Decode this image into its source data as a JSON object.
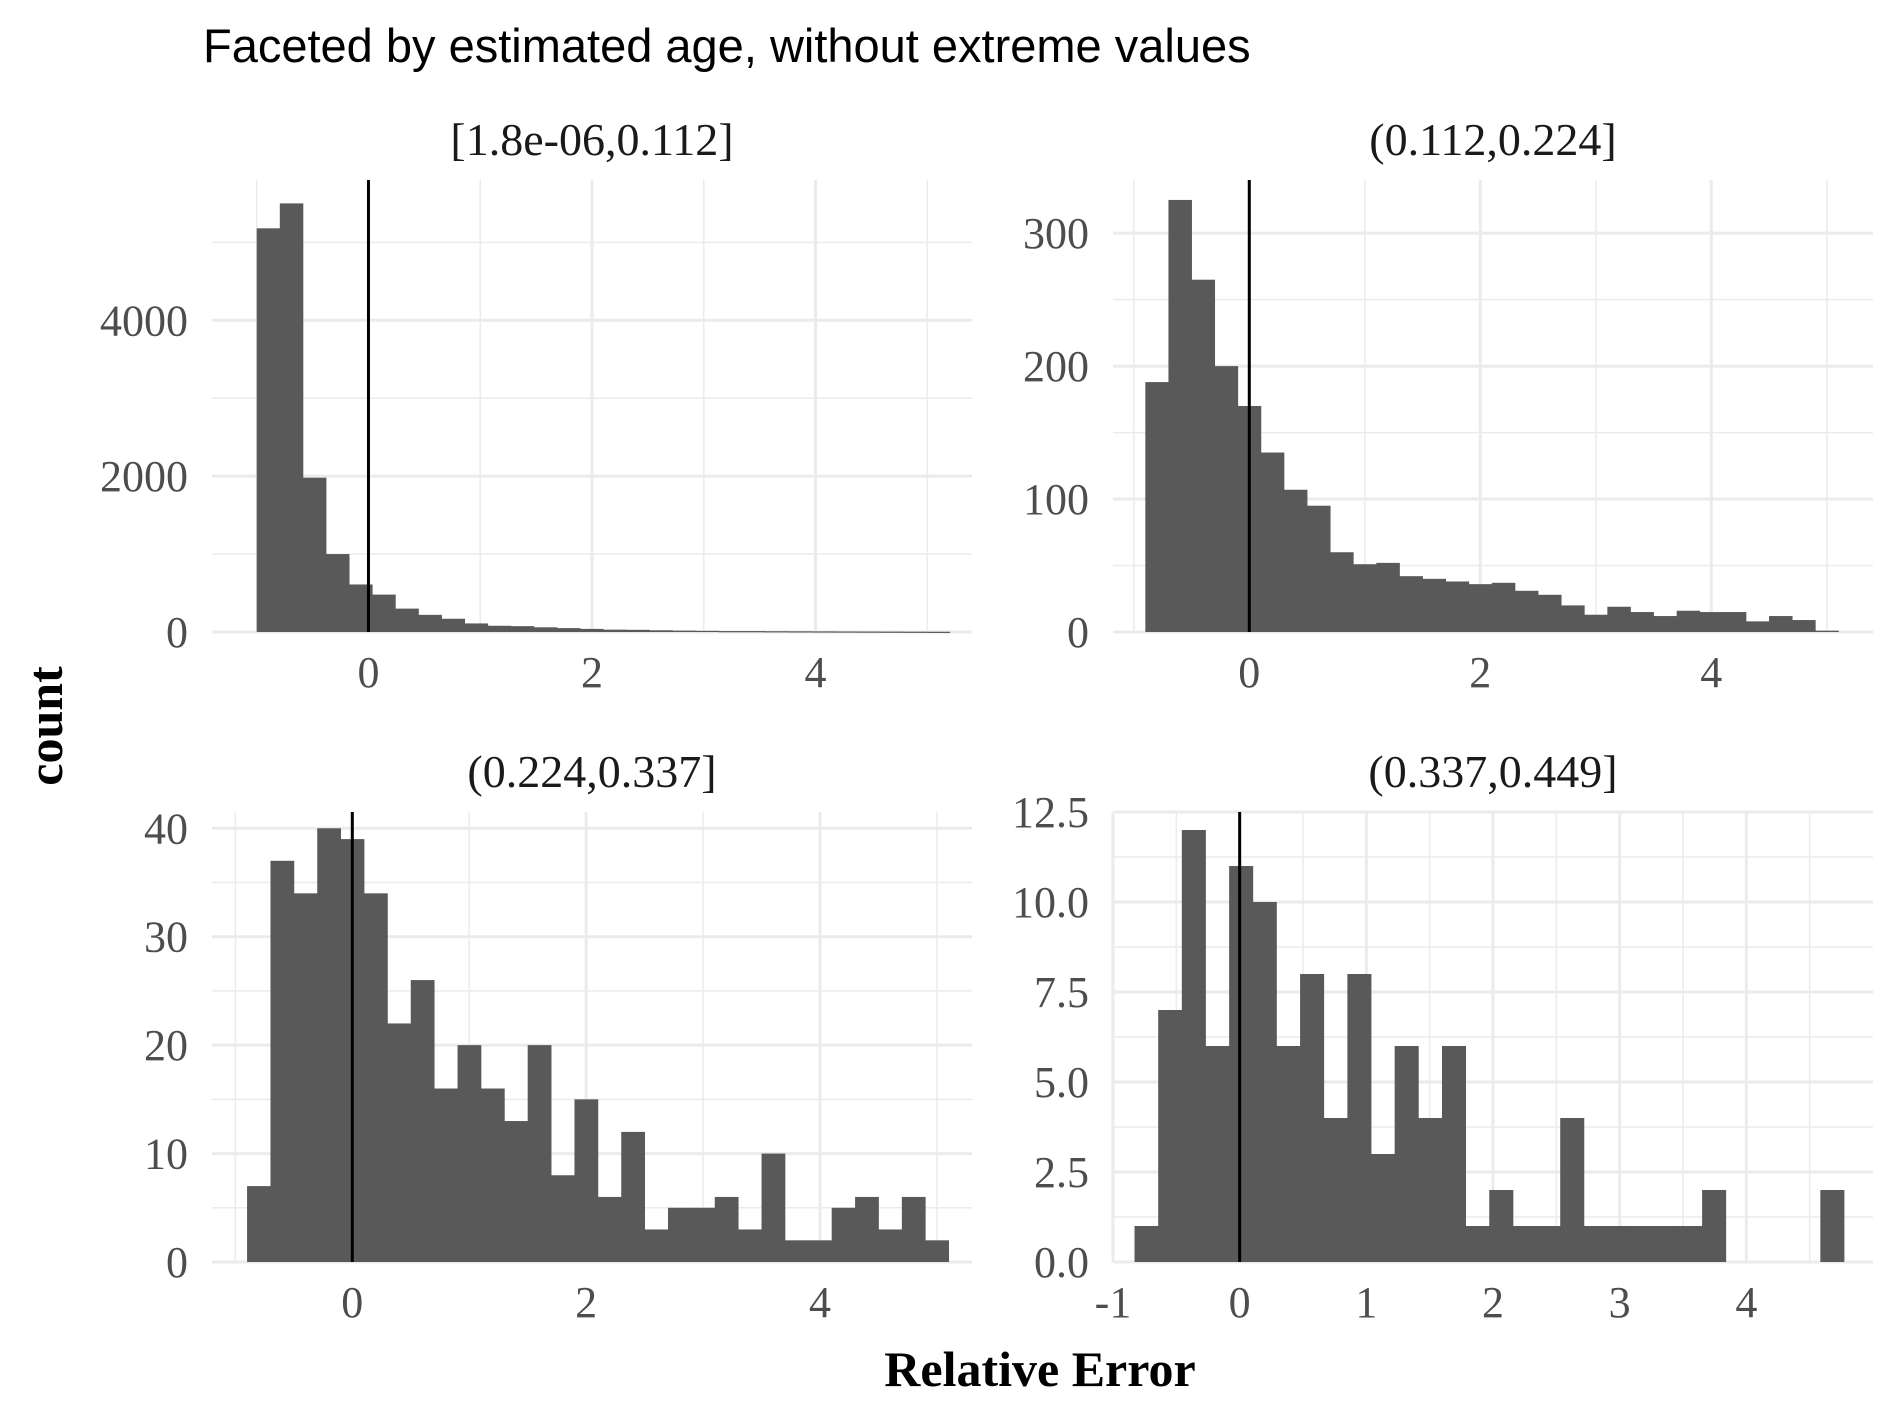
{
  "chart_data": {
    "type": "bar",
    "title": "Faceted by estimated age, without extreme values",
    "xlabel": "Relative Error",
    "ylabel": "count",
    "grid": true,
    "bar_color": "#595959",
    "grid_color": "#ebebeb",
    "reference_line_color": "#000000",
    "reference_line_x": 0,
    "facets": [
      {
        "label": "[1.8e-06,0.112]",
        "xlim": [
          -1.4,
          5.4
        ],
        "ylim": [
          0,
          5800
        ],
        "x_ticks": [
          0,
          2,
          4
        ],
        "x_tick_labels": [
          "0",
          "2",
          "4"
        ],
        "y_ticks": [
          0,
          2000,
          4000
        ],
        "y_tick_labels": [
          "0",
          "2000",
          "4000"
        ],
        "bin_start": -1.0,
        "bin_width": 0.2067,
        "counts": [
          5180,
          5500,
          1980,
          1000,
          610,
          480,
          300,
          220,
          170,
          110,
          80,
          75,
          60,
          50,
          40,
          30,
          28,
          22,
          18,
          15,
          12,
          12,
          10,
          9,
          8,
          7,
          6,
          5,
          4,
          3
        ]
      },
      {
        "label": "(0.112,0.224]",
        "xlim": [
          -1.18,
          5.4
        ],
        "ylim": [
          0,
          340
        ],
        "x_ticks": [
          0,
          2,
          4
        ],
        "x_tick_labels": [
          "0",
          "2",
          "4"
        ],
        "y_ticks": [
          0,
          100,
          200,
          300
        ],
        "y_tick_labels": [
          "0",
          "100",
          "200",
          "300"
        ],
        "bin_start": -0.9,
        "bin_width": 0.2,
        "counts": [
          188,
          325,
          265,
          200,
          170,
          135,
          107,
          95,
          60,
          51,
          52,
          42,
          40,
          38,
          36,
          37,
          31,
          28,
          20,
          13,
          19,
          15,
          12,
          16,
          15,
          15,
          8,
          12,
          9,
          1
        ]
      },
      {
        "label": "(0.224,0.337]",
        "xlim": [
          -1.2,
          5.3
        ],
        "ylim": [
          0,
          41.5
        ],
        "x_ticks": [
          0,
          2,
          4
        ],
        "x_tick_labels": [
          "0",
          "2",
          "4"
        ],
        "y_ticks": [
          0,
          10,
          20,
          30,
          40
        ],
        "y_tick_labels": [
          "0",
          "10",
          "20",
          "30",
          "40"
        ],
        "bin_start": -0.9,
        "bin_width": 0.2,
        "counts": [
          7,
          37,
          34,
          40,
          39,
          34,
          22,
          26,
          16,
          20,
          16,
          13,
          20,
          8,
          15,
          6,
          12,
          3,
          5,
          5,
          6,
          3,
          10,
          2,
          2,
          5,
          6,
          3,
          6,
          2
        ]
      },
      {
        "label": "(0.337,0.449]",
        "xlim": [
          -1.0,
          5.0
        ],
        "ylim": [
          0,
          12.5
        ],
        "x_ticks": [
          -1,
          0,
          1,
          2,
          3,
          4
        ],
        "x_tick_labels": [
          "-1",
          "0",
          "1",
          "2",
          "3",
          "4"
        ],
        "y_ticks": [
          0,
          2.5,
          5,
          7.5,
          10,
          12.5
        ],
        "y_tick_labels": [
          "0.0",
          "2.5",
          "5.0",
          "7.5",
          "10.0",
          "12.5"
        ],
        "bin_start": -0.83,
        "bin_width": 0.1867,
        "counts": [
          1,
          7,
          12,
          6,
          11,
          10,
          6,
          8,
          4,
          8,
          3,
          6,
          4,
          6,
          1,
          2,
          1,
          1,
          4,
          1,
          1,
          1,
          1,
          1,
          2,
          0,
          0,
          0,
          0,
          2
        ]
      }
    ]
  }
}
